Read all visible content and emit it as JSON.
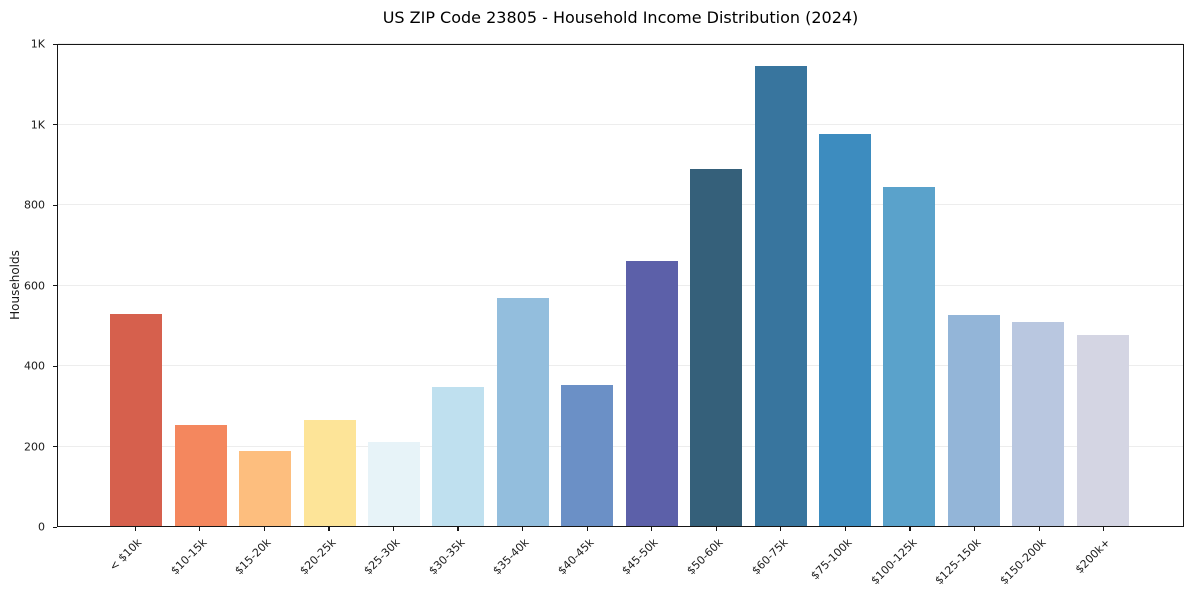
{
  "chart_data": {
    "type": "bar",
    "title": "US ZIP Code 23805 - Household Income Distribution (2024)",
    "xlabel": "",
    "ylabel": "Households",
    "ylim": [
      0,
      1200
    ],
    "grid": "horizontal",
    "legend": "none",
    "categories": [
      "< $10k",
      "$10-15k",
      "$15-20k",
      "$20-25k",
      "$25-30k",
      "$30-35k",
      "$35-40k",
      "$40-45k",
      "$45-50k",
      "$50-60k",
      "$60-75k",
      "$75-100k",
      "$100-125k",
      "$125-150k",
      "$150-200k",
      "$200k+"
    ],
    "values": [
      530,
      252,
      187,
      264,
      210,
      348,
      570,
      353,
      661,
      890,
      1147,
      978,
      845,
      527,
      508,
      476
    ],
    "bar_colors": [
      "#d6604d",
      "#f4875e",
      "#fdbe7e",
      "#fde498",
      "#e7f3f8",
      "#bfe0ef",
      "#93bedd",
      "#6b90c6",
      "#5c60a9",
      "#35607a",
      "#38759e",
      "#3d8cbf",
      "#5aa2cb",
      "#93b5d8",
      "#b9c7e0",
      "#d4d5e3"
    ],
    "y_ticks": [
      {
        "value": 0,
        "label": "0"
      },
      {
        "value": 200,
        "label": "200"
      },
      {
        "value": 400,
        "label": "400"
      },
      {
        "value": 600,
        "label": "600"
      },
      {
        "value": 800,
        "label": "800"
      },
      {
        "value": 1000,
        "label": "1K"
      },
      {
        "value": 1200,
        "label": "1K"
      }
    ],
    "colors": {
      "background": "#ffffff",
      "spine": "#161616",
      "gridline": "#ededed",
      "text": "#1c1c1c"
    }
  }
}
